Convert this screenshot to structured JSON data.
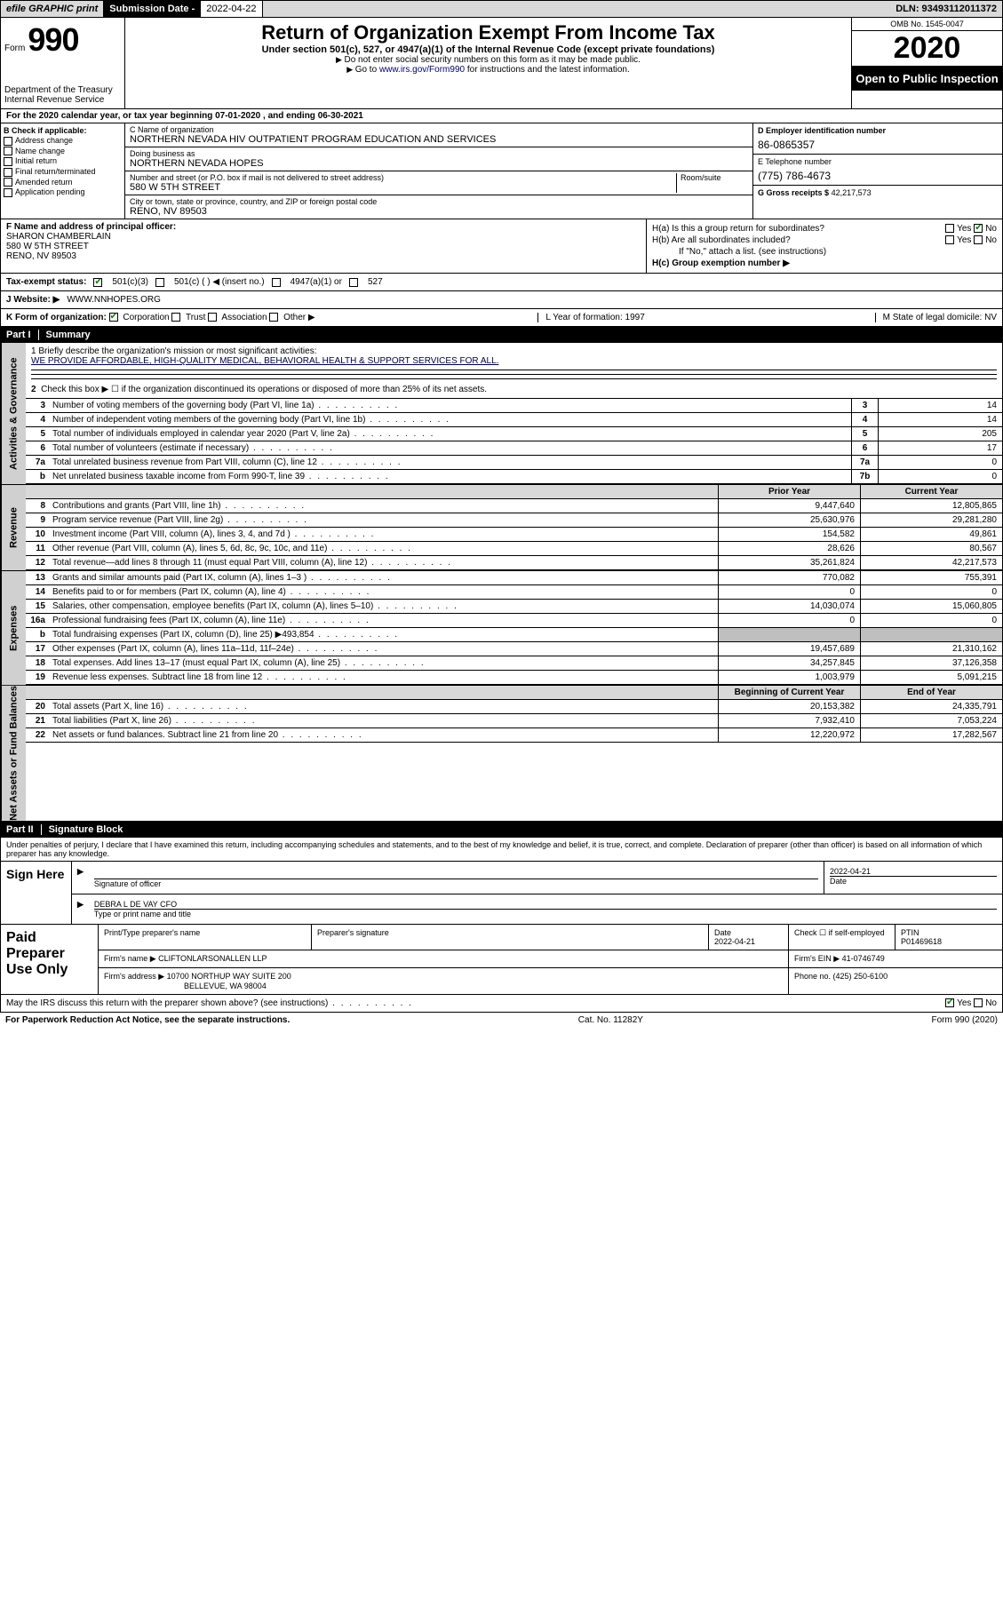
{
  "topbar": {
    "efile": "efile GRAPHIC print",
    "subdate_label": "Submission Date - ",
    "subdate_val": "2022-04-22",
    "dln": "DLN: 93493112011372"
  },
  "header": {
    "form_label": "Form",
    "form_number": "990",
    "dept": "Department of the Treasury\nInternal Revenue Service",
    "title": "Return of Organization Exempt From Income Tax",
    "sub": "Under section 501(c), 527, or 4947(a)(1) of the Internal Revenue Code (except private foundations)",
    "note1": "Do not enter social security numbers on this form as it may be made public.",
    "note2_pre": "Go to ",
    "note2_link": "www.irs.gov/Form990",
    "note2_post": " for instructions and the latest information.",
    "omb": "OMB No. 1545-0047",
    "year": "2020",
    "inspection": "Open to Public Inspection"
  },
  "row_a": "For the 2020 calendar year, or tax year beginning 07-01-2020    , and ending 06-30-2021",
  "col_b_hdr": "B Check if applicable:",
  "col_b_opts": [
    "Address change",
    "Name change",
    "Initial return",
    "Final return/terminated",
    "Amended return",
    "Application pending"
  ],
  "col_c": {
    "c1_label": "C Name of organization",
    "c1_val": "NORTHERN NEVADA HIV OUTPATIENT PROGRAM EDUCATION AND SERVICES",
    "dba_label": "Doing business as",
    "dba_val": "NORTHERN NEVADA HOPES",
    "addr_label": "Number and street (or P.O. box if mail is not delivered to street address)",
    "addr_val": "580 W 5TH STREET",
    "room_label": "Room/suite",
    "city_label": "City or town, state or province, country, and ZIP or foreign postal code",
    "city_val": "RENO, NV  89503"
  },
  "col_d": {
    "d_label": "D Employer identification number",
    "d_val": "86-0865357",
    "e_label": "E Telephone number",
    "e_val": "(775) 786-4673",
    "g_label": "G Gross receipts $",
    "g_val": "42,217,573"
  },
  "col_f": {
    "label": "F Name and address of principal officer:",
    "name": "SHARON CHAMBERLAIN",
    "addr1": "580 W 5TH STREET",
    "addr2": "RENO, NV  89503"
  },
  "col_h": {
    "ha": "H(a)  Is this a group return for subordinates?",
    "hb": "H(b)  Are all subordinates included?",
    "hbnote": "If \"No,\" attach a list. (see instructions)",
    "hc": "H(c)  Group exemption number ▶",
    "yes": "Yes",
    "no": "No"
  },
  "row_i": {
    "tax": "Tax-exempt status:",
    "o1": "501(c)(3)",
    "o2": "501(c) (   ) ◀ (insert no.)",
    "o3": "4947(a)(1) or",
    "o4": "527"
  },
  "row_j": {
    "label": "J   Website: ▶",
    "val": "WWW.NNHOPES.ORG"
  },
  "row_k": {
    "k": "K Form of organization:",
    "opts": [
      "Corporation",
      "Trust",
      "Association",
      "Other ▶"
    ],
    "l": "L Year of formation: 1997",
    "m": "M State of legal domicile: NV"
  },
  "part1": {
    "hdr": "Part I",
    "title": "Summary"
  },
  "sec1": {
    "l1": "1  Briefly describe the organization's mission or most significant activities:",
    "mission": "WE PROVIDE AFFORDABLE, HIGH-QUALITY MEDICAL, BEHAVIORAL HEALTH & SUPPORT SERVICES FOR ALL.",
    "l2": "Check this box ▶ ☐  if the organization discontinued its operations or disposed of more than 25% of its net assets."
  },
  "lines_single": [
    {
      "n": "3",
      "d": "Number of voting members of the governing body (Part VI, line 1a)",
      "b": "3",
      "v": "14"
    },
    {
      "n": "4",
      "d": "Number of independent voting members of the governing body (Part VI, line 1b)",
      "b": "4",
      "v": "14"
    },
    {
      "n": "5",
      "d": "Total number of individuals employed in calendar year 2020 (Part V, line 2a)",
      "b": "5",
      "v": "205"
    },
    {
      "n": "6",
      "d": "Total number of volunteers (estimate if necessary)",
      "b": "6",
      "v": "17"
    },
    {
      "n": "7a",
      "d": "Total unrelated business revenue from Part VIII, column (C), line 12",
      "b": "7a",
      "v": "0"
    },
    {
      "n": "b",
      "d": "Net unrelated business taxable income from Form 990-T, line 39",
      "b": "7b",
      "v": "0"
    }
  ],
  "vlabels": {
    "ag": "Activities & Governance",
    "rev": "Revenue",
    "exp": "Expenses",
    "na": "Net Assets or Fund Balances"
  },
  "col_hdrs": {
    "py": "Prior Year",
    "cy": "Current Year",
    "boy": "Beginning of Current Year",
    "eoy": "End of Year"
  },
  "lines_rev": [
    {
      "n": "8",
      "d": "Contributions and grants (Part VIII, line 1h)",
      "py": "9,447,640",
      "cy": "12,805,865"
    },
    {
      "n": "9",
      "d": "Program service revenue (Part VIII, line 2g)",
      "py": "25,630,976",
      "cy": "29,281,280"
    },
    {
      "n": "10",
      "d": "Investment income (Part VIII, column (A), lines 3, 4, and 7d )",
      "py": "154,582",
      "cy": "49,861"
    },
    {
      "n": "11",
      "d": "Other revenue (Part VIII, column (A), lines 5, 6d, 8c, 9c, 10c, and 11e)",
      "py": "28,626",
      "cy": "80,567"
    },
    {
      "n": "12",
      "d": "Total revenue—add lines 8 through 11 (must equal Part VIII, column (A), line 12)",
      "py": "35,261,824",
      "cy": "42,217,573"
    }
  ],
  "lines_exp": [
    {
      "n": "13",
      "d": "Grants and similar amounts paid (Part IX, column (A), lines 1–3 )",
      "py": "770,082",
      "cy": "755,391"
    },
    {
      "n": "14",
      "d": "Benefits paid to or for members (Part IX, column (A), line 4)",
      "py": "0",
      "cy": "0"
    },
    {
      "n": "15",
      "d": "Salaries, other compensation, employee benefits (Part IX, column (A), lines 5–10)",
      "py": "14,030,074",
      "cy": "15,060,805"
    },
    {
      "n": "16a",
      "d": "Professional fundraising fees (Part IX, column (A), line 11e)",
      "py": "0",
      "cy": "0"
    },
    {
      "n": "b",
      "d": "Total fundraising expenses (Part IX, column (D), line 25) ▶493,854",
      "py": "",
      "cy": "",
      "shade": true
    },
    {
      "n": "17",
      "d": "Other expenses (Part IX, column (A), lines 11a–11d, 11f–24e)",
      "py": "19,457,689",
      "cy": "21,310,162"
    },
    {
      "n": "18",
      "d": "Total expenses. Add lines 13–17 (must equal Part IX, column (A), line 25)",
      "py": "34,257,845",
      "cy": "37,126,358"
    },
    {
      "n": "19",
      "d": "Revenue less expenses. Subtract line 18 from line 12",
      "py": "1,003,979",
      "cy": "5,091,215"
    }
  ],
  "lines_na": [
    {
      "n": "20",
      "d": "Total assets (Part X, line 16)",
      "py": "20,153,382",
      "cy": "24,335,791"
    },
    {
      "n": "21",
      "d": "Total liabilities (Part X, line 26)",
      "py": "7,932,410",
      "cy": "7,053,224"
    },
    {
      "n": "22",
      "d": "Net assets or fund balances. Subtract line 21 from line 20",
      "py": "12,220,972",
      "cy": "17,282,567"
    }
  ],
  "part2": {
    "hdr": "Part II",
    "title": "Signature Block"
  },
  "sig_para": "Under penalties of perjury, I declare that I have examined this return, including accompanying schedules and statements, and to the best of my knowledge and belief, it is true, correct, and complete. Declaration of preparer (other than officer) is based on all information of which preparer has any knowledge.",
  "sig": {
    "here": "Sign Here",
    "sigoff": "Signature of officer",
    "date": "Date",
    "dateval": "2022-04-21",
    "name": "DEBRA L DE VAY CFO",
    "typ": "Type or print name and title"
  },
  "paid": {
    "label": "Paid Preparer Use Only",
    "r1": {
      "c1": "Print/Type preparer's name",
      "c2": "Preparer's signature",
      "c3": "Date",
      "c3v": "2022-04-21",
      "c4": "Check ☐ if self-employed",
      "c5": "PTIN",
      "c5v": "P01469618"
    },
    "r2": {
      "c1": "Firm's name    ▶",
      "c1v": "CLIFTONLARSONALLEN LLP",
      "c2": "Firm's EIN ▶",
      "c2v": "41-0746749"
    },
    "r3": {
      "c1": "Firm's address ▶",
      "c1v": "10700 NORTHUP WAY SUITE 200",
      "c2": "Phone no. (425) 250-6100"
    },
    "r3b": "BELLEVUE, WA  98004"
  },
  "discuss": "May the IRS discuss this return with the preparer shown above? (see instructions)",
  "footer": {
    "l": "For Paperwork Reduction Act Notice, see the separate instructions.",
    "c": "Cat. No. 11282Y",
    "r": "Form 990 (2020)"
  }
}
